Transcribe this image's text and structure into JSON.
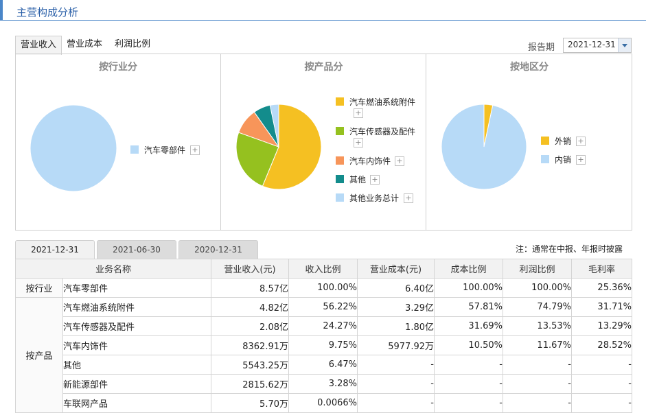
{
  "section_title": "主营构成分析",
  "top_tabs": [
    "营业收入",
    "营业成本",
    "利润比例"
  ],
  "period": {
    "label": "报告期",
    "value": "2021-12-31"
  },
  "panels": [
    {
      "title": "按行业分",
      "legend": [
        {
          "label": "汽车零部件",
          "color": "#b7daf7"
        }
      ],
      "pie": [
        {
          "label": "汽车零部件",
          "value": 100.0,
          "color": "#b7daf7"
        }
      ]
    },
    {
      "title": "按产品分",
      "legend": [
        {
          "label": "汽车燃油系统附件",
          "color": "#f5c022"
        },
        {
          "label": "汽车传感器及配件",
          "color": "#95c11f"
        },
        {
          "label": "汽车内饰件",
          "color": "#f7955a"
        },
        {
          "label": "其他",
          "color": "#138c8c"
        },
        {
          "label": "其他业务总计",
          "color": "#b7daf7"
        }
      ],
      "pie": [
        {
          "label": "汽车燃油系统附件",
          "value": 56.22,
          "color": "#f5c022"
        },
        {
          "label": "汽车传感器及配件",
          "value": 24.27,
          "color": "#95c11f"
        },
        {
          "label": "汽车内饰件",
          "value": 9.75,
          "color": "#f7955a"
        },
        {
          "label": "其他",
          "value": 6.47,
          "color": "#138c8c"
        },
        {
          "label": "其他业务总计",
          "value": 3.29,
          "color": "#b7daf7"
        }
      ]
    },
    {
      "title": "按地区分",
      "legend": [
        {
          "label": "外销",
          "color": "#f5c022"
        },
        {
          "label": "内销",
          "color": "#b7daf7"
        }
      ],
      "pie": [
        {
          "label": "外销",
          "value": 3.3,
          "color": "#f5c022"
        },
        {
          "label": "内销",
          "value": 96.7,
          "color": "#b7daf7"
        }
      ]
    }
  ],
  "bottom_tabs": [
    "2021-12-31",
    "2021-06-30",
    "2020-12-31"
  ],
  "note": "注：通常在中报、年报时披露",
  "table": {
    "headers": [
      "业务名称",
      "营业收入(元)",
      "收入比例",
      "营业成本(元)",
      "成本比例",
      "利润比例",
      "毛利率"
    ],
    "groups": [
      {
        "category": "按行业",
        "rows": [
          [
            "汽车零部件",
            "8.57亿",
            "100.00%",
            "6.40亿",
            "100.00%",
            "100.00%",
            "25.36%"
          ]
        ]
      },
      {
        "category": "按产品",
        "rows": [
          [
            "汽车燃油系统附件",
            "4.82亿",
            "56.22%",
            "3.29亿",
            "57.81%",
            "74.79%",
            "31.71%"
          ],
          [
            "汽车传感器及配件",
            "2.08亿",
            "24.27%",
            "1.80亿",
            "31.69%",
            "13.53%",
            "13.29%"
          ],
          [
            "汽车内饰件",
            "8362.91万",
            "9.75%",
            "5977.92万",
            "10.50%",
            "11.67%",
            "28.52%"
          ],
          [
            "其他",
            "5543.25万",
            "6.47%",
            "-",
            "-",
            "-",
            "-"
          ],
          [
            "新能源部件",
            "2815.62万",
            "3.28%",
            "-",
            "-",
            "-",
            "-"
          ],
          [
            "车联网产品",
            "5.70万",
            "0.0066%",
            "-",
            "-",
            "-",
            "-"
          ]
        ]
      }
    ]
  }
}
